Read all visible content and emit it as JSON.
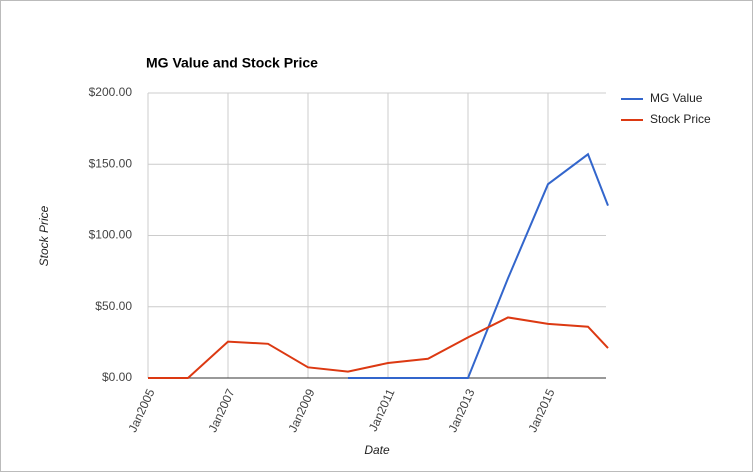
{
  "chart_data": {
    "type": "line",
    "title": "MG Value and Stock Price",
    "x_label": "Date",
    "y_label": "Stock Price",
    "x": [
      2005,
      2006,
      2007,
      2008,
      2009,
      2010,
      2011,
      2012,
      2013,
      2014,
      2015,
      2016,
      2016.5
    ],
    "series": [
      {
        "name": "MG Value",
        "color": "#3366cc",
        "values": [
          null,
          null,
          null,
          null,
          null,
          0,
          0,
          0,
          0,
          70,
          136,
          157,
          121
        ]
      },
      {
        "name": "Stock Price",
        "color": "#dc3912",
        "values": [
          0,
          0,
          25.5,
          24,
          7.5,
          4.5,
          10.5,
          13.5,
          28.5,
          42.5,
          38,
          36,
          21
        ]
      }
    ],
    "xlim": [
      2005,
      2016.45
    ],
    "xticks": [
      {
        "value": 2005,
        "label": "Jan2005"
      },
      {
        "value": 2007,
        "label": "Jan2007"
      },
      {
        "value": 2009,
        "label": "Jan2009"
      },
      {
        "value": 2011,
        "label": "Jan2011"
      },
      {
        "value": 2013,
        "label": "Jan2013"
      },
      {
        "value": 2015,
        "label": "Jan2015"
      }
    ],
    "ylim": [
      0,
      200
    ],
    "yticks": [
      {
        "value": 0,
        "label": "$0.00"
      },
      {
        "value": 50,
        "label": "$50.00"
      },
      {
        "value": 100,
        "label": "$100.00"
      },
      {
        "value": 150,
        "label": "$150.00"
      },
      {
        "value": 200,
        "label": "$200.00"
      }
    ],
    "grid": true,
    "legend": "right"
  }
}
